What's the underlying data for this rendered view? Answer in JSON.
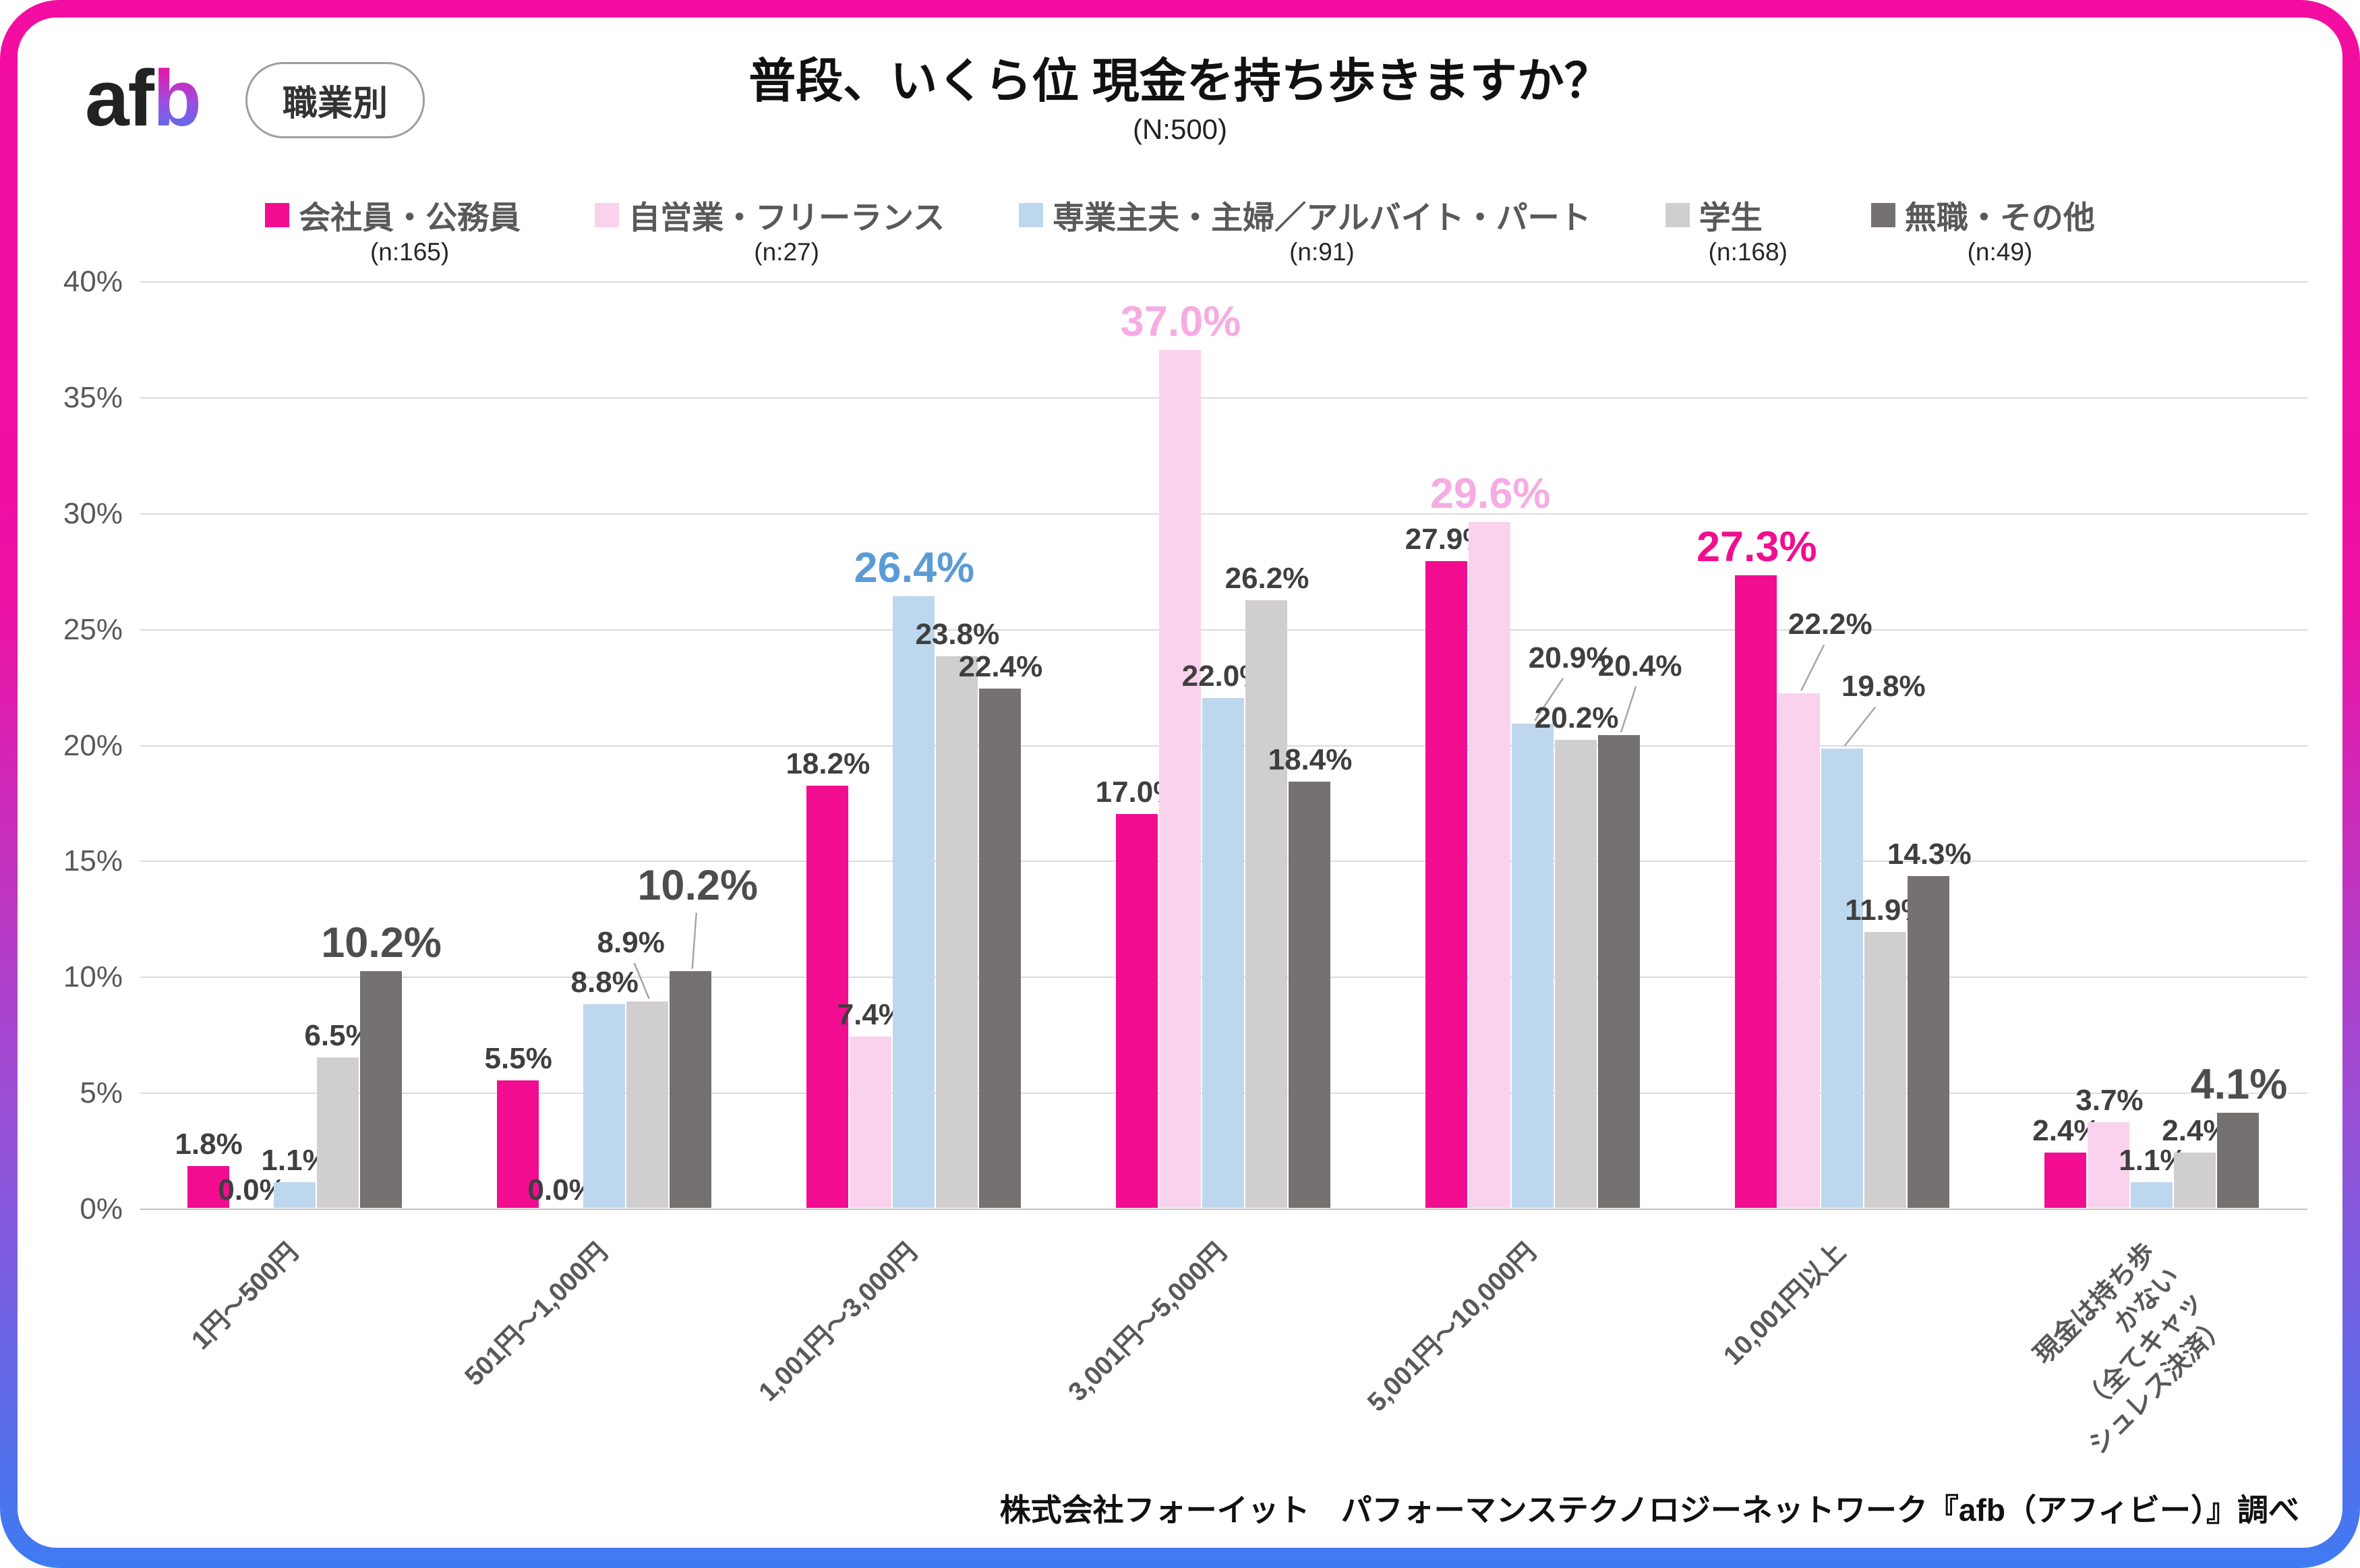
{
  "header": {
    "logo_prefix": "af",
    "logo_accent": "b",
    "badge": "職業別",
    "title": "普段、いくら位 現金を持ち歩きますか？",
    "subtitle": "(N:500)"
  },
  "footer": {
    "credit": "株式会社フォーイット　パフォーマンステクノロジーネットワーク『afb（アフィビー）』調べ"
  },
  "colors": {
    "frame_top": "#F30DA0",
    "frame_mid": "#9C4ED6",
    "frame_bottom": "#3E7BF2",
    "grid": "#DBDBDB",
    "axis": "#C3C3C3",
    "tick_label": "#595959",
    "data_label": "#3F3F3F",
    "leader": "#A6A6A6"
  },
  "chart_data": {
    "type": "bar",
    "title": "普段、いくら位 現金を持ち歩きますか？",
    "subtitle": "(N:500)",
    "ylabel": "",
    "xlabel": "",
    "ylim": [
      0,
      40
    ],
    "ytick_step": 5,
    "ytick_suffix": "%",
    "grid": true,
    "legend_position": "top",
    "categories": [
      "1円〜500円",
      "501円〜1,000円",
      "1,001円〜3,000円",
      "3,001円〜5,000円",
      "5,001円〜10,000円",
      "10,001円以上",
      "現金は持ち歩かない\n（全てキャッシュレス決済）"
    ],
    "series": [
      {
        "name": "会社員・公務員",
        "n": "(n:165)",
        "color": "#F20D90",
        "values": [
          1.8,
          5.5,
          18.2,
          17.0,
          27.9,
          27.3,
          2.4
        ]
      },
      {
        "name": "自営業・フリーランス",
        "n": "(n:27)",
        "color": "#FAD2ED",
        "values": [
          0.0,
          0.0,
          7.4,
          37.0,
          29.6,
          22.2,
          3.7
        ]
      },
      {
        "name": "専業主夫・主婦／アルバイト・パート",
        "n": "(n:91)",
        "color": "#BDD7EE",
        "values": [
          1.1,
          8.8,
          26.4,
          22.0,
          20.9,
          19.8,
          1.1
        ]
      },
      {
        "name": "学生",
        "n": "(n:168)",
        "color": "#D0CECE",
        "values": [
          6.5,
          8.9,
          23.8,
          26.2,
          20.2,
          11.9,
          2.4
        ]
      },
      {
        "name": "無職・その他",
        "n": "(n:49)",
        "color": "#767171",
        "values": [
          10.2,
          10.2,
          22.4,
          18.4,
          20.4,
          14.3,
          4.1
        ]
      }
    ],
    "highlights": [
      {
        "group": 0,
        "series": 4,
        "color": "#4D4D4D"
      },
      {
        "group": 1,
        "series": 4,
        "color": "#4D4D4D"
      },
      {
        "group": 2,
        "series": 2,
        "color": "#5B9BD5"
      },
      {
        "group": 3,
        "series": 1,
        "color": "#F6ACE2"
      },
      {
        "group": 4,
        "series": 1,
        "color": "#F6ACE2"
      },
      {
        "group": 5,
        "series": 0,
        "color": "#F20D90"
      },
      {
        "group": 6,
        "series": 4,
        "color": "#4D4D4D"
      }
    ],
    "label_offsets": [
      {
        "group": 1,
        "series": 3,
        "dx": -25,
        "raise": 55,
        "leader": true
      },
      {
        "group": 1,
        "series": 4,
        "dx": 10,
        "raise": 85,
        "leader": true
      },
      {
        "group": 4,
        "series": 2,
        "dx": 55,
        "raise": 65,
        "leader": true
      },
      {
        "group": 4,
        "series": 4,
        "dx": 30,
        "raise": 70,
        "leader": true
      },
      {
        "group": 5,
        "series": 1,
        "dx": 45,
        "raise": 70,
        "leader": true
      },
      {
        "group": 5,
        "series": 2,
        "dx": 60,
        "raise": 60,
        "leader": true
      }
    ]
  }
}
